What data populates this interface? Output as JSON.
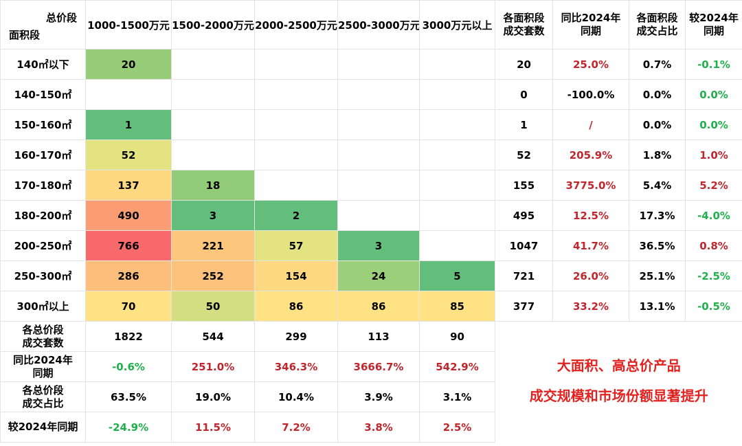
{
  "corner": {
    "top": "总价段",
    "bottom": "面积段"
  },
  "headers": {
    "price_bands": [
      "1000-1500万元",
      "1500-2000万元",
      "2000-2500万元",
      "2500-3000万元",
      "3000万元以上"
    ],
    "area_count_l1": "各面积段",
    "area_count_l2": "成交套数",
    "yoy_l1": "同比2024年",
    "yoy_l2": "同期",
    "share_l1": "各面积段",
    "share_l2": "成交占比",
    "diff_l1": "较2024年",
    "diff_l2": "同期"
  },
  "rows": [
    {
      "label": "140㎡以下",
      "cells": [
        "20",
        "",
        "",
        "",
        ""
      ],
      "count": "20",
      "yoy": "25.0%",
      "share": "0.7%",
      "diff": "-0.1%"
    },
    {
      "label": "140-150㎡",
      "cells": [
        "",
        "",
        "",
        "",
        ""
      ],
      "count": "0",
      "yoy": "-100.0%",
      "share": "0.0%",
      "diff": "0.0%"
    },
    {
      "label": "150-160㎡",
      "cells": [
        "1",
        "",
        "",
        "",
        ""
      ],
      "count": "1",
      "yoy": "/",
      "share": "0.0%",
      "diff": "0.0%"
    },
    {
      "label": "160-170㎡",
      "cells": [
        "52",
        "",
        "",
        "",
        ""
      ],
      "count": "52",
      "yoy": "205.9%",
      "share": "1.8%",
      "diff": "1.0%"
    },
    {
      "label": "170-180㎡",
      "cells": [
        "137",
        "18",
        "",
        "",
        ""
      ],
      "count": "155",
      "yoy": "3775.0%",
      "share": "5.4%",
      "diff": "5.2%"
    },
    {
      "label": "180-200㎡",
      "cells": [
        "490",
        "3",
        "2",
        "",
        ""
      ],
      "count": "495",
      "yoy": "12.5%",
      "share": "17.3%",
      "diff": "-4.0%"
    },
    {
      "label": "200-250㎡",
      "cells": [
        "766",
        "221",
        "57",
        "3",
        ""
      ],
      "count": "1047",
      "yoy": "41.7%",
      "share": "36.5%",
      "diff": "0.8%"
    },
    {
      "label": "250-300㎡",
      "cells": [
        "286",
        "252",
        "154",
        "24",
        "5"
      ],
      "count": "721",
      "yoy": "26.0%",
      "share": "25.1%",
      "diff": "-2.5%"
    },
    {
      "label": "300㎡以上",
      "cells": [
        "70",
        "50",
        "86",
        "86",
        "85"
      ],
      "count": "377",
      "yoy": "33.2%",
      "share": "13.1%",
      "diff": "-0.5%"
    }
  ],
  "heat_colors": [
    [
      "#97cd78",
      "",
      "",
      "",
      ""
    ],
    [
      "",
      "",
      "",
      "",
      ""
    ],
    [
      "#63be7b",
      "",
      "",
      "",
      ""
    ],
    [
      "#e3e382",
      "",
      "",
      "",
      ""
    ],
    [
      "#fed981",
      "#92cb77",
      "",
      "",
      ""
    ],
    [
      "#fa9d75",
      "#63be7b",
      "#63be7b",
      "",
      ""
    ],
    [
      "#f8696b",
      "#fdc67d",
      "#e3e382",
      "#63be7b",
      ""
    ],
    [
      "#fcbf7b",
      "#fdc27c",
      "#fed981",
      "#9ccf7a",
      "#63be7b"
    ],
    [
      "#ffe283",
      "#d2de81",
      "#ffe283",
      "#ffe283",
      "#ffe283"
    ]
  ],
  "bottom_rows": [
    {
      "l1": "各总价段",
      "l2": "成交套数",
      "values": [
        "1822",
        "544",
        "299",
        "113",
        "90"
      ]
    },
    {
      "l1": "同比2024年",
      "l2": "同期",
      "values": [
        "-0.6%",
        "251.0%",
        "346.3%",
        "3666.7%",
        "542.9%"
      ]
    },
    {
      "l1": "各总价段",
      "l2": "成交占比",
      "values": [
        "63.5%",
        "19.0%",
        "10.4%",
        "3.9%",
        "3.1%"
      ]
    },
    {
      "l1": "较2024年同期",
      "l2": "",
      "values": [
        "-24.9%",
        "11.5%",
        "7.2%",
        "3.8%",
        "2.5%"
      ]
    }
  ],
  "note": {
    "line1": "大面积、高总价产品",
    "line2": "成交规模和市场份额显著提升"
  },
  "colors": {
    "positive": "#c0262d",
    "negative": "#1fb04b",
    "note": "#e1221f"
  }
}
